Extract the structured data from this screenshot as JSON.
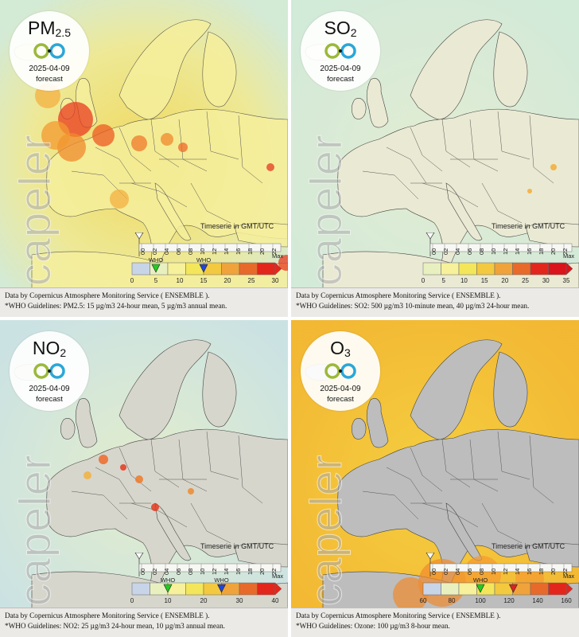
{
  "timeline_label": "Timeserie in GMT/UTC",
  "hours": [
    "00",
    "02",
    "04",
    "06",
    "08",
    "10",
    "12",
    "14",
    "16",
    "18",
    "20",
    "22"
  ],
  "watermark": "Scapeler",
  "panels": [
    {
      "pollutant": "PM",
      "pollutant_sub": "2.5",
      "date": "2025-04-09",
      "status": "forecast",
      "legend_ticks": [
        "0",
        "5",
        "10",
        "15",
        "20",
        "25",
        "30"
      ],
      "max_label": "Max",
      "who_labels": [
        "WHO",
        "WHO"
      ],
      "who_marker_colors": [
        "#22cc22",
        "#2244dd"
      ],
      "who_values": [
        5,
        15
      ],
      "legend_colors": [
        "#c8d4e8",
        "#e9f0c0",
        "#f6f19a",
        "#f3e65a",
        "#f3c93f",
        "#f0a33a",
        "#e86a2a",
        "#e3261c"
      ],
      "caption_line1": "Data by Copernicus Atmosphere Monitoring Service ( ENSEMBLE ).",
      "caption_line2": "*WHO Guidelines: PM2.5: 15 µg/m3 24-hour mean, 5 µg/m3 annual mean.",
      "map_style": "pm25"
    },
    {
      "pollutant": "SO",
      "pollutant_sub": "2",
      "date": "2025-04-09",
      "status": "forecast",
      "legend_ticks": [
        "0",
        "5",
        "10",
        "15",
        "20",
        "25",
        "30",
        "35"
      ],
      "max_label": "Max",
      "who_labels": [],
      "who_marker_colors": [],
      "who_values": [],
      "legend_colors": [
        "#e9f0c0",
        "#f6f19a",
        "#f3e65a",
        "#f3c93f",
        "#f0a33a",
        "#e86a2a",
        "#e3261c",
        "#d9141a"
      ],
      "caption_line1": "Data by Copernicus Atmosphere Monitoring Service ( ENSEMBLE ).",
      "caption_line2": "*WHO Guidelines: SO2: 500 µg/m3 10-minute mean, 40 µg/m3 24-hour mean.",
      "map_style": "so2"
    },
    {
      "pollutant": "NO",
      "pollutant_sub": "2",
      "date": "2025-04-09",
      "status": "forecast",
      "legend_ticks": [
        "0",
        "10",
        "20",
        "30",
        "40"
      ],
      "max_label": "Max",
      "who_labels": [
        "WHO",
        "WHO"
      ],
      "who_marker_colors": [
        "#22cc22",
        "#2244dd"
      ],
      "who_values": [
        10,
        25
      ],
      "legend_colors": [
        "#c8d4e8",
        "#e9f0c0",
        "#f6f19a",
        "#f3e65a",
        "#f3c93f",
        "#f0a33a",
        "#e86a2a",
        "#e3261c"
      ],
      "caption_line1": "Data by Copernicus Atmosphere Monitoring Service ( ENSEMBLE ).",
      "caption_line2": "*WHO Guidelines: NO2: 25 µg/m3 24-hour mean, 10 µg/m3 annual mean.",
      "map_style": "no2"
    },
    {
      "pollutant": "O",
      "pollutant_sub": "3",
      "date": "2025-04-09",
      "status": "forecast",
      "legend_ticks": [
        "60",
        "80",
        "100",
        "120",
        "140",
        "160"
      ],
      "max_label": "Max",
      "who_labels": [
        "WHO"
      ],
      "who_marker_colors": [
        "#22cc22"
      ],
      "who_values": [
        100
      ],
      "max_marker_color": "#dd2222",
      "legend_colors": [
        "#c8d4e8",
        "#e9f0c0",
        "#f6f19a",
        "#f3e65a",
        "#f3c93f",
        "#f0a33a",
        "#e86a2a",
        "#e3261c"
      ],
      "caption_line1": "Data by Copernicus Atmosphere Monitoring Service ( ENSEMBLE ).",
      "caption_line2": "*WHO Guidelines: Ozone: 100 µg/m3 8-hour mean.",
      "map_style": "o3"
    }
  ]
}
